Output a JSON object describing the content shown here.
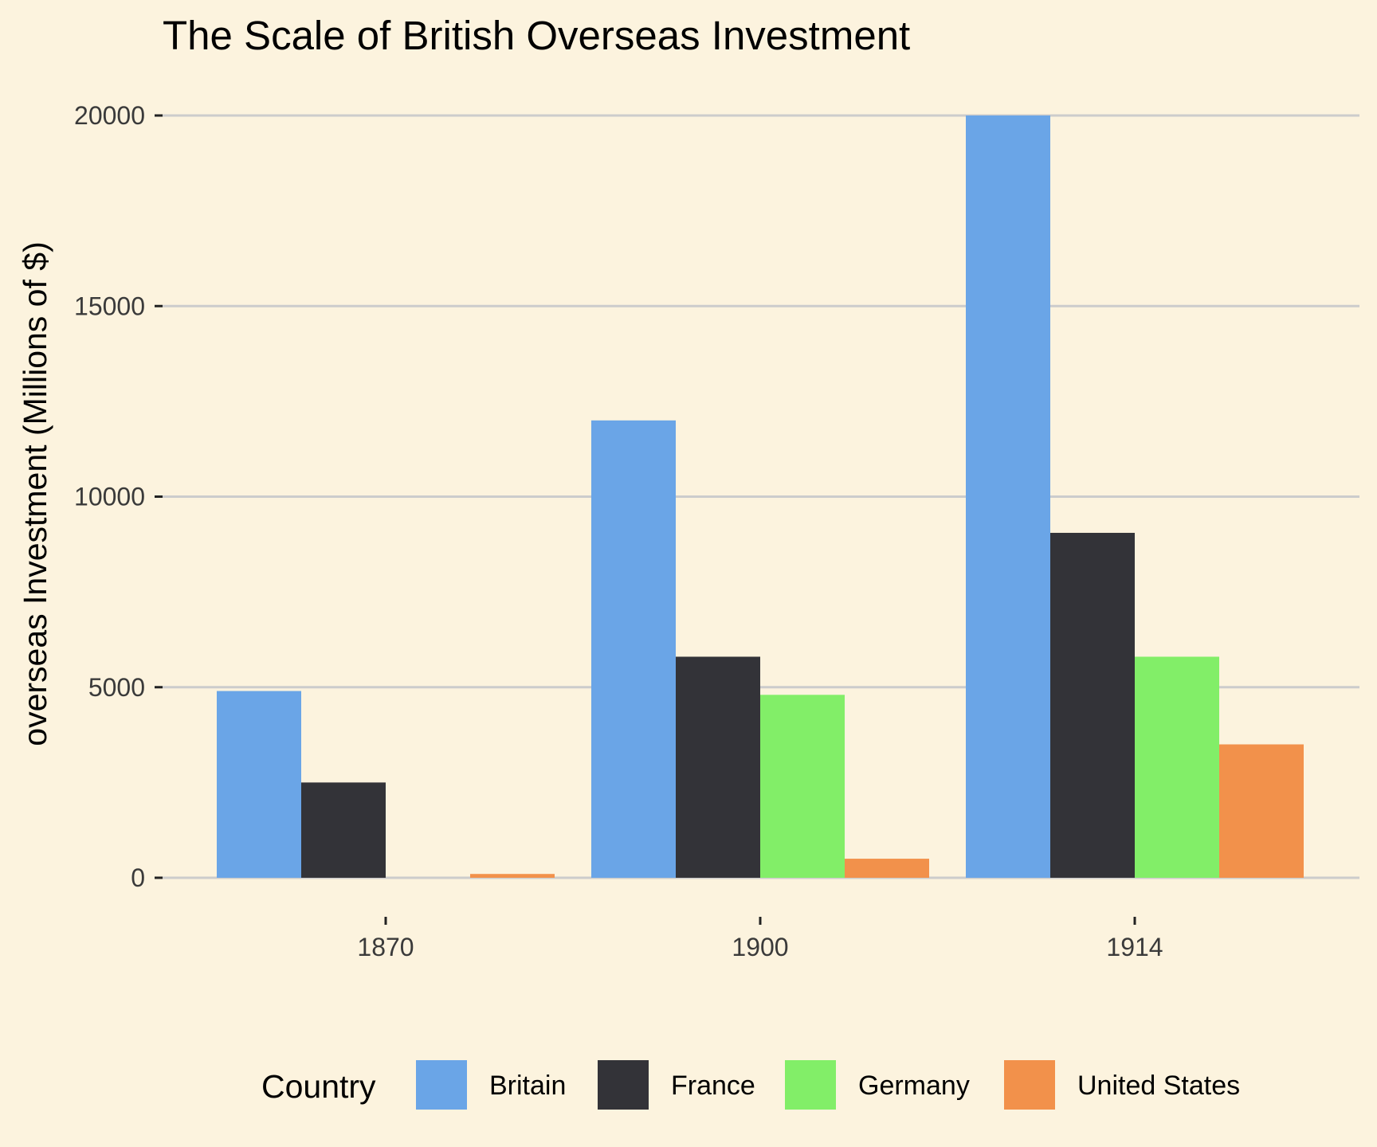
{
  "chart_data": {
    "type": "bar",
    "title": "The Scale of British Overseas Investment",
    "xlabel": "",
    "ylabel": "overseas Investment (Millions of $)",
    "categories": [
      "1870",
      "1900",
      "1914"
    ],
    "series": [
      {
        "name": "Britain",
        "color": "#6aa5e7",
        "values": [
          4900,
          12000,
          20000
        ]
      },
      {
        "name": "France",
        "color": "#333338",
        "values": [
          2500,
          5800,
          9050
        ]
      },
      {
        "name": "Germany",
        "color": "#82ee68",
        "values": [
          0,
          4800,
          5800
        ]
      },
      {
        "name": "United States",
        "color": "#f2914b",
        "values": [
          100,
          500,
          3500
        ]
      }
    ],
    "ylim": [
      0,
      20000
    ],
    "yticks": [
      "0",
      "5000",
      "10000",
      "15000",
      "20000"
    ],
    "grid": true,
    "legend": {
      "title": "Country",
      "placement": "bottom"
    },
    "colors": {
      "background": "#fcf3de",
      "grid": "#cccccc"
    }
  }
}
